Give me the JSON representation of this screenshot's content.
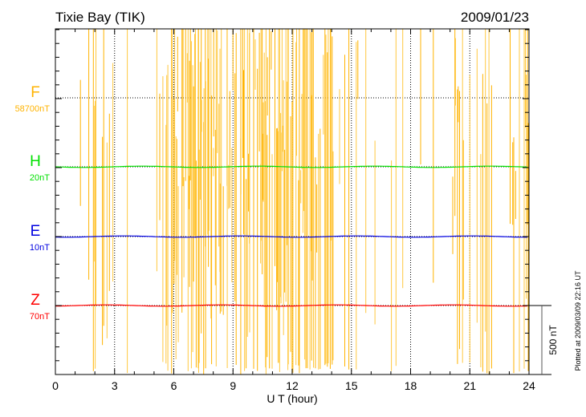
{
  "chart_data": {
    "type": "line",
    "title": "Tixie Bay (TIK)",
    "date": "2009/01/23",
    "xlabel": "U T (hour)",
    "xlim": [
      0,
      24
    ],
    "xticks": [
      0,
      3,
      6,
      9,
      12,
      15,
      18,
      21,
      24
    ],
    "x_tick_labels": [
      "0",
      "3",
      "6",
      "9",
      "12",
      "15",
      "18",
      "21",
      "24"
    ],
    "grid": "dotted",
    "scale_bar_label": "500 nT",
    "scale_bar_nT": 500,
    "footer": "Plotted at 2009/03/09 22:16 UT",
    "series": [
      {
        "name": "F",
        "baseline": "58700nT",
        "color": "#ffb300",
        "style": "spiky, frequent dropouts/spikes spanning full panel",
        "spike_activity_by_hour": [
          0,
          0.3,
          0.3,
          0.1,
          0,
          0.5,
          0.9,
          0.9,
          0.8,
          0.8,
          0.8,
          0.9,
          0.9,
          0.6,
          0.2,
          0.2,
          0.2,
          0.1,
          0.1,
          0.1,
          0.4,
          0.4,
          0.1,
          0.7
        ]
      },
      {
        "name": "H",
        "baseline": "20nT",
        "color": "#00e000",
        "value_nT": 0
      },
      {
        "name": "E",
        "baseline": "10nT",
        "color": "#0000e0",
        "value_nT": 0
      },
      {
        "name": "Z",
        "baseline": "70nT",
        "color": "#ff0000",
        "value_nT": 0
      }
    ]
  }
}
